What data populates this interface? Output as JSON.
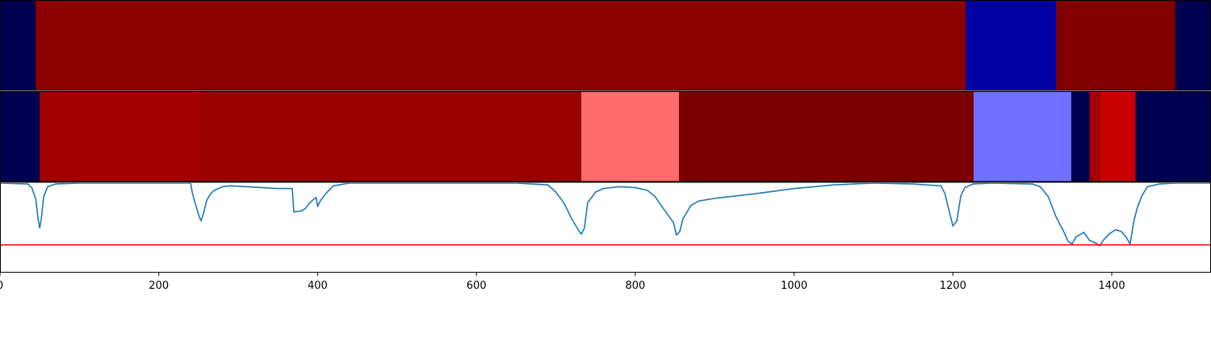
{
  "chart_data": [
    {
      "type": "heatmap",
      "xlim": [
        0,
        1525
      ],
      "segments": [
        {
          "x0": 0,
          "x1": 45,
          "color": "#000050"
        },
        {
          "x0": 45,
          "x1": 1216,
          "color": "#8c0000"
        },
        {
          "x0": 1216,
          "x1": 1330,
          "color": "#0000a0"
        },
        {
          "x0": 1330,
          "x1": 1480,
          "color": "#800000"
        },
        {
          "x0": 1480,
          "x1": 1525,
          "color": "#000050"
        }
      ]
    },
    {
      "type": "heatmap",
      "xlim": [
        0,
        1525
      ],
      "segments": [
        {
          "x0": 0,
          "x1": 50,
          "color": "#000050"
        },
        {
          "x0": 50,
          "x1": 252,
          "color": "#a40000"
        },
        {
          "x0": 252,
          "x1": 732,
          "color": "#9a0000"
        },
        {
          "x0": 732,
          "x1": 855,
          "color": "#ff6d6d"
        },
        {
          "x0": 855,
          "x1": 1226,
          "color": "#7d0000"
        },
        {
          "x0": 1226,
          "x1": 1349,
          "color": "#7070ff"
        },
        {
          "x0": 1349,
          "x1": 1372,
          "color": "#000050"
        },
        {
          "x0": 1372,
          "x1": 1386,
          "color": "#a00000"
        },
        {
          "x0": 1386,
          "x1": 1430,
          "color": "#c80000"
        },
        {
          "x0": 1430,
          "x1": 1525,
          "color": "#000050"
        }
      ]
    },
    {
      "type": "line",
      "xlim": [
        0,
        1525
      ],
      "ylim": [
        0,
        1
      ],
      "line_color": "#1f77b4",
      "threshold": 0.31,
      "threshold_color": "#ff0000",
      "xticks": [
        0,
        200,
        400,
        600,
        800,
        1000,
        1200,
        1400
      ],
      "x": [
        0,
        35,
        40,
        45,
        48,
        50,
        52,
        55,
        60,
        70,
        100,
        150,
        200,
        240,
        242,
        245,
        250,
        253,
        256,
        260,
        265,
        270,
        280,
        290,
        310,
        330,
        350,
        368,
        370,
        372,
        380,
        385,
        390,
        395,
        398,
        400,
        402,
        405,
        410,
        420,
        440,
        500,
        600,
        650,
        690,
        700,
        710,
        720,
        728,
        732,
        736,
        740,
        750,
        760,
        780,
        800,
        815,
        825,
        835,
        848,
        852,
        856,
        860,
        870,
        880,
        900,
        950,
        1000,
        1050,
        1100,
        1150,
        1185,
        1190,
        1195,
        1200,
        1205,
        1208,
        1210,
        1215,
        1225,
        1250,
        1300,
        1310,
        1320,
        1330,
        1340,
        1345,
        1350,
        1355,
        1365,
        1372,
        1380,
        1385,
        1390,
        1398,
        1405,
        1412,
        1418,
        1423,
        1425,
        1428,
        1432,
        1438,
        1445,
        1460,
        1480,
        1525
      ],
      "y": [
        1,
        0.99,
        0.95,
        0.82,
        0.6,
        0.5,
        0.6,
        0.85,
        0.96,
        0.99,
        1,
        1,
        1,
        1,
        0.9,
        0.8,
        0.65,
        0.58,
        0.65,
        0.8,
        0.88,
        0.92,
        0.96,
        0.97,
        0.96,
        0.95,
        0.94,
        0.94,
        0.68,
        0.68,
        0.69,
        0.72,
        0.78,
        0.82,
        0.84,
        0.74,
        0.78,
        0.82,
        0.88,
        0.97,
        1,
        1,
        1,
        1,
        0.98,
        0.9,
        0.78,
        0.6,
        0.48,
        0.43,
        0.5,
        0.78,
        0.9,
        0.94,
        0.96,
        0.95,
        0.92,
        0.85,
        0.72,
        0.56,
        0.42,
        0.46,
        0.6,
        0.75,
        0.8,
        0.83,
        0.88,
        0.94,
        0.98,
        1,
        0.99,
        0.97,
        0.88,
        0.7,
        0.52,
        0.58,
        0.75,
        0.86,
        0.95,
        0.99,
        1,
        0.99,
        0.96,
        0.85,
        0.62,
        0.45,
        0.35,
        0.32,
        0.4,
        0.45,
        0.36,
        0.33,
        0.3,
        0.37,
        0.44,
        0.48,
        0.46,
        0.4,
        0.32,
        0.42,
        0.58,
        0.72,
        0.86,
        0.96,
        0.99,
        1,
        1
      ]
    }
  ]
}
